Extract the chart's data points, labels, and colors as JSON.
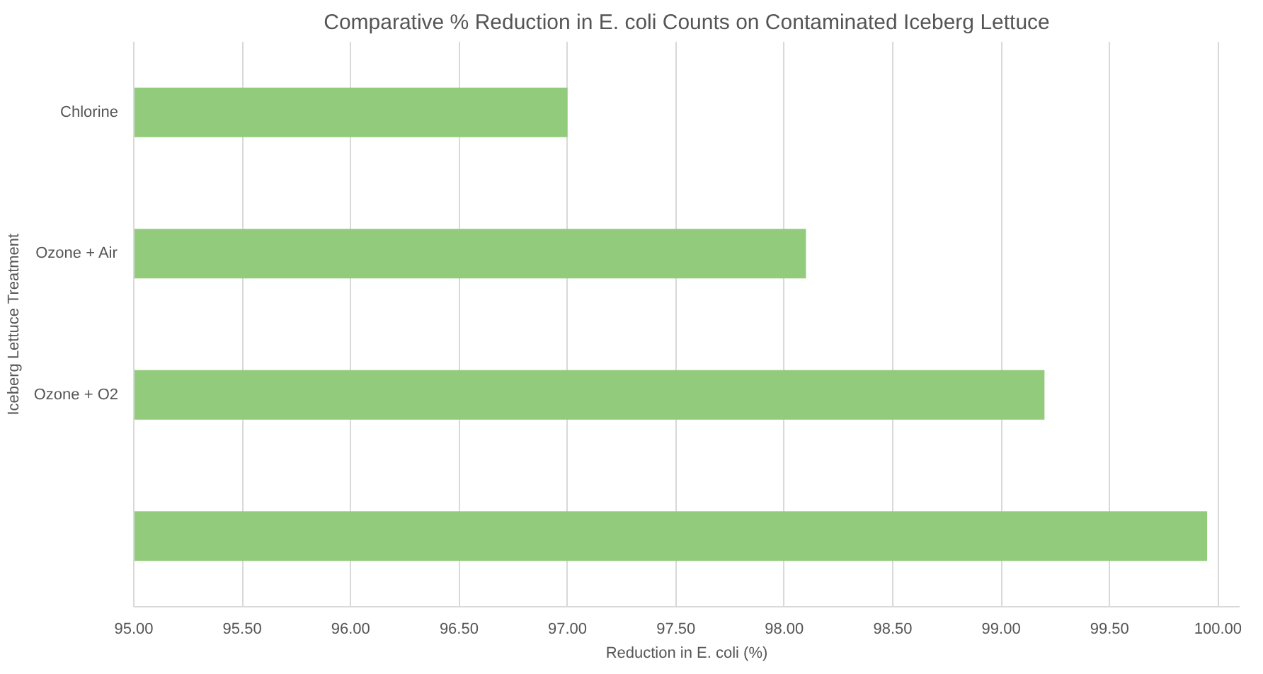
{
  "chart_data": {
    "type": "bar",
    "orientation": "horizontal",
    "title": "Comparative % Reduction in E. coli Counts on Contaminated Iceberg Lettuce",
    "xlabel": "Reduction in E. coli (%)",
    "ylabel": "Iceberg Lettuce Treatment",
    "categories": [
      "Chlorine",
      "Ozone + Air",
      "Ozone + O2",
      null
    ],
    "values": [
      97.0,
      98.1,
      99.2,
      99.95
    ],
    "color": "#93cb7c",
    "xlim": [
      95,
      100.1
    ],
    "xticks": [
      {
        "value": 95,
        "label": "95.00"
      },
      {
        "value": 95.5,
        "label": "95.50"
      },
      {
        "value": 96,
        "label": "96.00"
      },
      {
        "value": 96.5,
        "label": "96.50"
      },
      {
        "value": 97,
        "label": "97.00"
      },
      {
        "value": 97.5,
        "label": "97.50"
      },
      {
        "value": 98,
        "label": "98.00"
      },
      {
        "value": 98.5,
        "label": "98.50"
      },
      {
        "value": 99,
        "label": "99.00"
      },
      {
        "value": 99.5,
        "label": "99.50"
      },
      {
        "value": 100,
        "label": "100.00"
      }
    ],
    "grid": "x"
  }
}
